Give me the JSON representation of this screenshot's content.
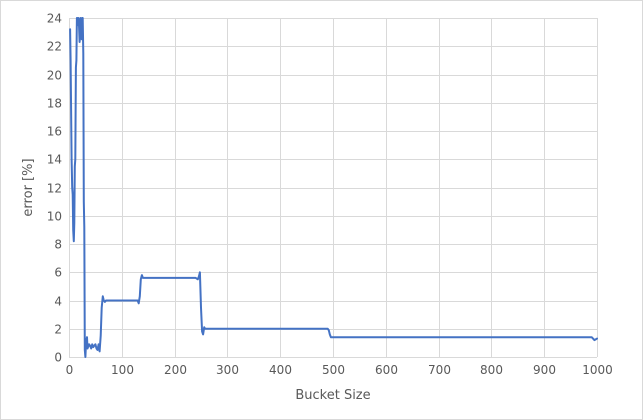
{
  "chart_data": {
    "type": "line",
    "title": "",
    "xlabel": "Bucket Size",
    "ylabel": "error [%]",
    "xlim": [
      0,
      1000
    ],
    "ylim": [
      0,
      24
    ],
    "x_ticks": [
      0,
      100,
      200,
      300,
      400,
      500,
      600,
      700,
      800,
      900,
      1000
    ],
    "y_ticks": [
      0,
      2,
      4,
      6,
      8,
      10,
      12,
      14,
      16,
      18,
      20,
      22,
      24
    ],
    "grid": true,
    "legend": "none",
    "series": [
      {
        "color": "#4472c4",
        "x": [
          2,
          3,
          4,
          5,
          6,
          7,
          8,
          9,
          10,
          11,
          12,
          13,
          14,
          15,
          16,
          17,
          18,
          19,
          20,
          21,
          22,
          23,
          24,
          25,
          26,
          27,
          28,
          29,
          30,
          31,
          32,
          33,
          34,
          35,
          36,
          38,
          40,
          42,
          44,
          46,
          48,
          50,
          52,
          54,
          56,
          58,
          60,
          62,
          64,
          66,
          68,
          70,
          80,
          90,
          100,
          110,
          120,
          130,
          132,
          134,
          136,
          138,
          140,
          150,
          200,
          240,
          244,
          246,
          248,
          250,
          252,
          254,
          256,
          258,
          260,
          270,
          300,
          400,
          488,
          490,
          492,
          494,
          496,
          500,
          600,
          700,
          800,
          900,
          985,
          990,
          995,
          1000
        ],
        "y": [
          23.2,
          21.0,
          17.5,
          14.0,
          12.0,
          11.5,
          9.0,
          8.2,
          9.5,
          13.5,
          14.0,
          20.5,
          21.0,
          24.0,
          24.0,
          23.5,
          24.0,
          23.5,
          22.3,
          22.8,
          24.0,
          23.0,
          22.5,
          24.0,
          24.0,
          21.5,
          11.0,
          9.2,
          0.5,
          0.0,
          0.8,
          1.2,
          1.4,
          0.6,
          0.7,
          0.9,
          0.8,
          0.6,
          0.9,
          0.7,
          0.8,
          0.9,
          0.6,
          0.5,
          0.9,
          0.4,
          1.5,
          3.5,
          4.3,
          4.0,
          3.9,
          4.0,
          4.0,
          4.0,
          4.0,
          4.0,
          4.0,
          4.0,
          3.8,
          4.3,
          5.5,
          5.8,
          5.6,
          5.6,
          5.6,
          5.6,
          5.5,
          5.7,
          6.0,
          3.5,
          1.8,
          1.6,
          2.1,
          2.0,
          2.0,
          2.0,
          2.0,
          2.0,
          2.0,
          2.0,
          1.9,
          1.6,
          1.4,
          1.4,
          1.4,
          1.4,
          1.4,
          1.4,
          1.4,
          1.4,
          1.2,
          1.3
        ]
      }
    ]
  }
}
